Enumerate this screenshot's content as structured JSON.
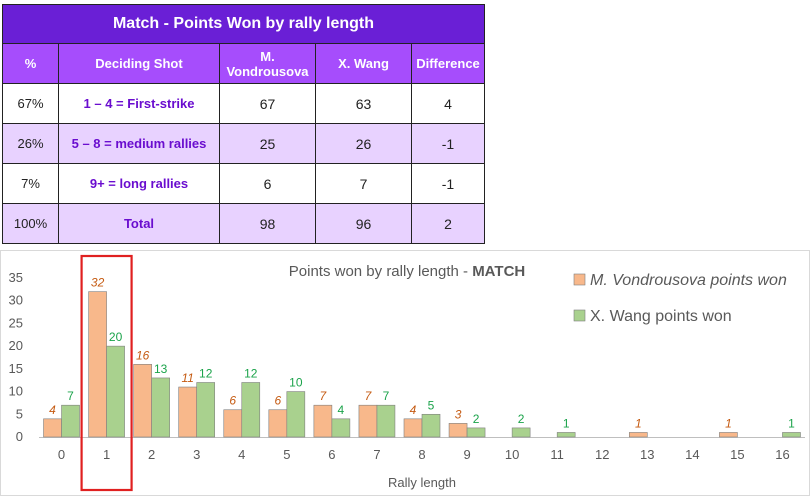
{
  "table": {
    "title": "Match - Points Won by rally length",
    "headers": {
      "pct": "%",
      "shot": "Deciding Shot",
      "p1_line1": "M.",
      "p1_line2": "Vondrousova",
      "p2": "X. Wang",
      "diff": "Difference"
    },
    "rows": [
      {
        "pct": "67%",
        "label": "1 – 4 = First-strike",
        "p1": "67",
        "p2": "63",
        "diff": "4"
      },
      {
        "pct": "26%",
        "label": "5 – 8 = medium rallies",
        "p1": "25",
        "p2": "26",
        "diff": "-1"
      },
      {
        "pct": "7%",
        "label": "9+ = long rallies",
        "p1": "6",
        "p2": "7",
        "diff": "-1"
      },
      {
        "pct": "100%",
        "label": "Total",
        "p1": "98",
        "p2": "96",
        "diff": "2"
      }
    ]
  },
  "chart_data": {
    "type": "bar",
    "title_prefix": "Points won by rally length - ",
    "title_bold": "MATCH",
    "xlabel": "Rally length",
    "ylabel": "",
    "ylim": [
      0,
      35
    ],
    "yticks": [
      0,
      5,
      10,
      15,
      20,
      25,
      30,
      35
    ],
    "categories": [
      "0",
      "1",
      "2",
      "3",
      "4",
      "5",
      "6",
      "7",
      "8",
      "9",
      "10",
      "11",
      "12",
      "13",
      "14",
      "15",
      "16"
    ],
    "series": [
      {
        "name": "M. Vondrousova points won",
        "color": "#f8b88b",
        "values": [
          4,
          32,
          16,
          11,
          6,
          6,
          7,
          7,
          4,
          3,
          0,
          0,
          0,
          1,
          0,
          1,
          0
        ]
      },
      {
        "name": "X. Wang points won",
        "color": "#a9d18e",
        "values": [
          7,
          20,
          13,
          12,
          12,
          10,
          4,
          7,
          5,
          2,
          2,
          1,
          0,
          0,
          0,
          0,
          1
        ]
      }
    ],
    "grid": false,
    "legend": "top-right",
    "highlight_category": "1",
    "highlight_color": "#e02020"
  }
}
